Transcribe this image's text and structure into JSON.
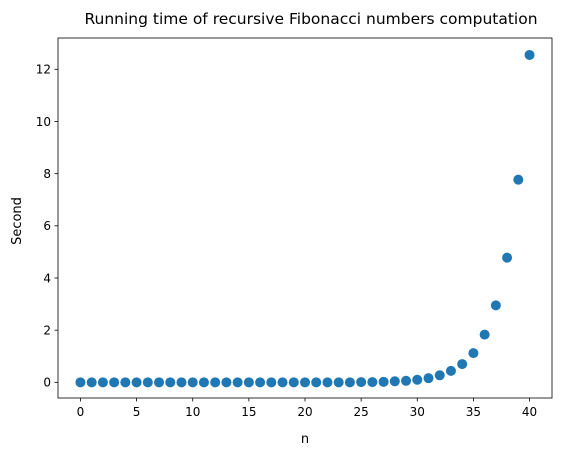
{
  "chart_data": {
    "type": "scatter",
    "title": "Running time of recursive Fibonacci numbers computation",
    "xlabel": "n",
    "ylabel": "Second",
    "xlim": [
      -2,
      42
    ],
    "ylim": [
      -0.6,
      13.2
    ],
    "xticks": [
      0,
      5,
      10,
      15,
      20,
      25,
      30,
      35,
      40
    ],
    "yticks": [
      0,
      2,
      4,
      6,
      8,
      10,
      12
    ],
    "grid": false,
    "marker_color": "#1f77b4",
    "series": [
      {
        "x": [
          0,
          1,
          2,
          3,
          4,
          5,
          6,
          7,
          8,
          9,
          10,
          11,
          12,
          13,
          14,
          15,
          16,
          17,
          18,
          19,
          20,
          21,
          22,
          23,
          24,
          25,
          26,
          27,
          28,
          29,
          30,
          31,
          32,
          33,
          34,
          35,
          36,
          37,
          38,
          39,
          40
        ],
        "y": [
          0,
          0,
          0,
          0,
          0,
          0,
          0,
          0,
          0,
          0,
          0,
          0,
          0,
          0,
          0,
          0,
          0,
          0,
          0,
          0,
          0,
          0,
          0,
          0,
          0,
          0.01,
          0.01,
          0.02,
          0.04,
          0.06,
          0.1,
          0.16,
          0.27,
          0.44,
          0.7,
          1.12,
          1.83,
          2.95,
          4.78,
          7.77,
          12.55
        ]
      }
    ]
  }
}
